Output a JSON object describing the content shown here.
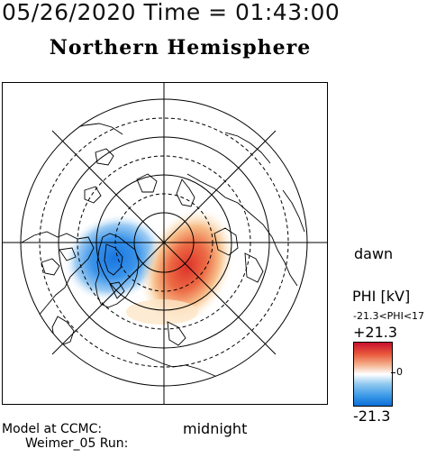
{
  "header": {
    "datetime": "05/26/2020 Time = 01:43:00",
    "hemisphere": "Northern Hemisphere"
  },
  "map": {
    "orientation": {
      "dawn_label": "dawn",
      "midnight_label": "midnight"
    },
    "colors": {
      "positive": "#d7191c",
      "negative": "#1e88e5",
      "land_outline": "#000000"
    }
  },
  "colorbar": {
    "title": "PHI [kV]",
    "range_text": "-21.3<PHI<17",
    "max_label": "+21.3",
    "min_label": "-21.3",
    "zero_label": "0"
  },
  "footer": {
    "model_label": "Model at CCMC:",
    "run_label": "Weimer_05 Run:"
  }
}
